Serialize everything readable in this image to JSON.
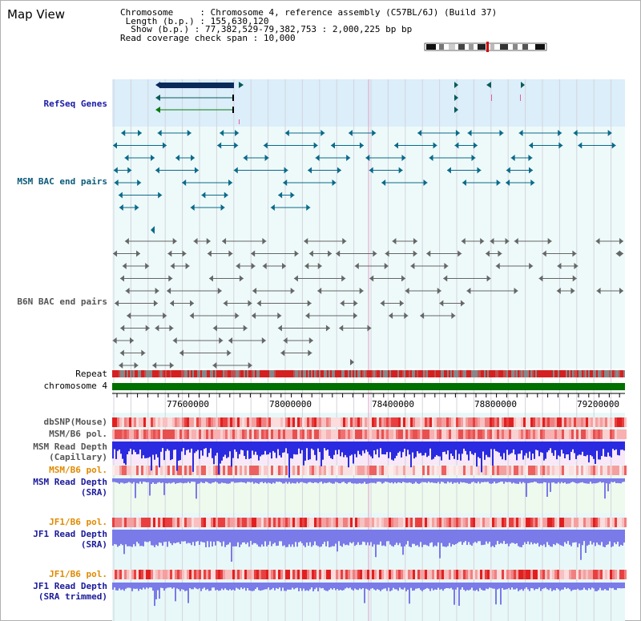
{
  "page": {
    "title": "Map View"
  },
  "info": {
    "chromosome_label": "Chromosome",
    "chromosome_value": "Chromosome 4, reference assembly (C57BL/6J) (Build 37)",
    "length_label": "Length (b.p.)",
    "length_value": "155,630,120",
    "show_label": "Show (b.p.)",
    "show_value": "77,382,529-79,382,753 : 2,000,225 bp",
    "coverage_label": "Read coverage check span",
    "coverage_value": "10,000"
  },
  "tracks": {
    "refseq": "RefSeq Genes",
    "msm_bac": "MSM BAC end pairs",
    "b6n_bac": "B6N BAC end pairs",
    "repeat": "Repeat",
    "chromosome": "chromosome 4",
    "dbsnp": "dbSNP(Mouse)",
    "msm_b6_pol_1": "MSM/B6 pol.",
    "msm_depth_cap_1": "MSM Read Depth",
    "msm_depth_cap_2": "(Capillary)",
    "msm_b6_pol_2": "MSM/B6 pol.",
    "msm_depth_sra_1": "MSM Read Depth",
    "msm_depth_sra_2": "(SRA)",
    "jf1_b6_pol_1": "JF1/B6 pol.",
    "jf1_depth_sra_1": "JF1 Read Depth",
    "jf1_depth_sra_2": "(SRA)",
    "jf1_b6_pol_2": "JF1/B6 pol.",
    "jf1_depth_trim_1": "JF1 Read Depth",
    "jf1_depth_trim_2": "(SRA trimmed)"
  },
  "axis": {
    "ticks": [
      "77600000",
      "78000000",
      "78400000",
      "78800000",
      "79200000"
    ]
  },
  "colors": {
    "refseq_bg": "#dbeefa",
    "bac_bg": "#eefafa",
    "repeat_red": "#d42020",
    "chromosome_green": "#007000",
    "depth_blue": "#2a2ae0",
    "sra_blue": "#7a7ae8"
  }
}
